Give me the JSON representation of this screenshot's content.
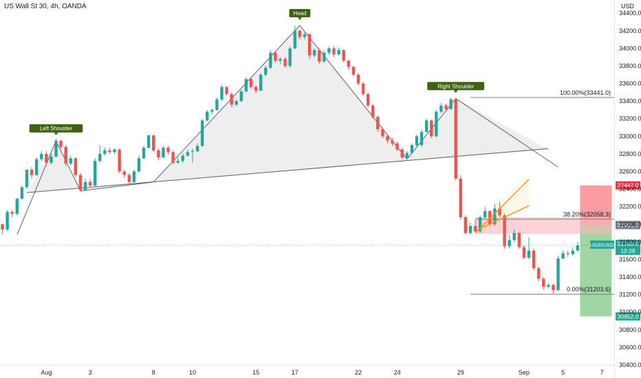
{
  "header": {
    "title": "US Wall St 30, 4h, OANDA",
    "currency": "USD"
  },
  "chart_data": {
    "type": "candlestick",
    "title": "US Wall St 30, 4h, OANDA",
    "ylim": [
      30400,
      34550
    ],
    "y_ticks": [
      30400,
      30600,
      30800,
      31000,
      31200,
      31400,
      31600,
      31800,
      32000,
      32200,
      32400,
      32600,
      32800,
      33000,
      33200,
      33400,
      33600,
      33800,
      34000,
      34200,
      34400
    ],
    "x_ticks": [
      {
        "i": 9,
        "label": "Aug"
      },
      {
        "i": 18,
        "label": "3"
      },
      {
        "i": 31,
        "label": "8"
      },
      {
        "i": 39,
        "label": "10"
      },
      {
        "i": 52,
        "label": "15"
      },
      {
        "i": 60,
        "label": "17"
      },
      {
        "i": 73,
        "label": "22"
      },
      {
        "i": 81,
        "label": "24"
      },
      {
        "i": 94,
        "label": "29"
      },
      {
        "i": 107,
        "label": "Sep"
      },
      {
        "i": 115,
        "label": "5"
      },
      {
        "i": 123,
        "label": "7"
      }
    ],
    "bar_count": 126,
    "candles": [
      [
        0,
        32000,
        31940,
        32010,
        31880
      ],
      [
        1,
        31940,
        32140,
        32160,
        31920
      ],
      [
        2,
        32140,
        32120,
        32160,
        32080
      ],
      [
        3,
        32120,
        32290,
        32300,
        32100
      ],
      [
        4,
        32290,
        32420,
        32440,
        32280
      ],
      [
        5,
        32420,
        32620,
        32630,
        32400
      ],
      [
        6,
        32620,
        32560,
        32650,
        32520
      ],
      [
        7,
        32560,
        32740,
        32760,
        32550
      ],
      [
        8,
        32740,
        32800,
        32830,
        32720
      ],
      [
        9,
        32800,
        32700,
        32830,
        32660
      ],
      [
        10,
        32700,
        32770,
        32810,
        32680
      ],
      [
        11,
        32770,
        32950,
        32970,
        32760
      ],
      [
        12,
        32950,
        32880,
        32960,
        32860
      ],
      [
        13,
        32880,
        32690,
        32900,
        32660
      ],
      [
        14,
        32690,
        32750,
        32780,
        32670
      ],
      [
        15,
        32750,
        32560,
        32760,
        32530
      ],
      [
        16,
        32560,
        32390,
        32580,
        32370
      ],
      [
        17,
        32390,
        32480,
        32520,
        32380
      ],
      [
        18,
        32480,
        32440,
        32520,
        32420
      ],
      [
        19,
        32440,
        32720,
        32750,
        32430
      ],
      [
        20,
        32720,
        32800,
        32900,
        32700
      ],
      [
        21,
        32800,
        32840,
        32870,
        32780
      ],
      [
        22,
        32840,
        32820,
        32870,
        32800
      ],
      [
        23,
        32820,
        32850,
        32860,
        32800
      ],
      [
        24,
        32850,
        32600,
        32860,
        32580
      ],
      [
        25,
        32600,
        32560,
        32620,
        32530
      ],
      [
        26,
        32560,
        32480,
        32580,
        32450
      ],
      [
        27,
        32480,
        32600,
        32620,
        32470
      ],
      [
        28,
        32600,
        32750,
        32780,
        32590
      ],
      [
        29,
        32750,
        32870,
        32890,
        32740
      ],
      [
        30,
        32870,
        33010,
        33020,
        32860
      ],
      [
        31,
        33010,
        32840,
        33020,
        32820
      ],
      [
        32,
        32840,
        32760,
        32860,
        32730
      ],
      [
        33,
        32760,
        32870,
        32890,
        32750
      ],
      [
        34,
        32870,
        32820,
        32890,
        32790
      ],
      [
        35,
        32820,
        32700,
        32840,
        32680
      ],
      [
        36,
        32700,
        32720,
        32760,
        32690
      ],
      [
        37,
        32720,
        32780,
        32810,
        32700
      ],
      [
        38,
        32780,
        32820,
        32850,
        32770
      ],
      [
        39,
        32820,
        32830,
        32860,
        32700
      ],
      [
        40,
        32830,
        32890,
        32920,
        32820
      ],
      [
        41,
        32890,
        33180,
        33200,
        32880
      ],
      [
        42,
        33180,
        33280,
        33300,
        33170
      ],
      [
        43,
        33280,
        33300,
        33320,
        33250
      ],
      [
        44,
        33300,
        33420,
        33440,
        33290
      ],
      [
        45,
        33420,
        33560,
        33580,
        33400
      ],
      [
        46,
        33560,
        33480,
        33570,
        33460
      ],
      [
        47,
        33480,
        33360,
        33500,
        33330
      ],
      [
        48,
        33360,
        33400,
        33420,
        33340
      ],
      [
        49,
        33400,
        33510,
        33530,
        33390
      ],
      [
        50,
        33510,
        33650,
        33670,
        33500
      ],
      [
        51,
        33650,
        33560,
        33660,
        33540
      ],
      [
        52,
        33560,
        33520,
        33580,
        33490
      ],
      [
        53,
        33520,
        33700,
        33720,
        33510
      ],
      [
        54,
        33700,
        33780,
        33800,
        33680
      ],
      [
        55,
        33780,
        33950,
        33980,
        33770
      ],
      [
        56,
        33950,
        33860,
        33960,
        33840
      ],
      [
        57,
        33860,
        33880,
        33900,
        33820
      ],
      [
        58,
        33880,
        33800,
        33900,
        33780
      ],
      [
        59,
        33800,
        34000,
        34020,
        33780
      ],
      [
        60,
        34000,
        34200,
        34260,
        33990
      ],
      [
        61,
        34200,
        34130,
        34210,
        34100
      ],
      [
        62,
        34130,
        34160,
        34180,
        34100
      ],
      [
        63,
        34160,
        33920,
        34170,
        33880
      ],
      [
        64,
        33920,
        33980,
        34000,
        33900
      ],
      [
        65,
        33980,
        33850,
        34000,
        33820
      ],
      [
        66,
        33850,
        33950,
        33970,
        33840
      ],
      [
        67,
        33950,
        34000,
        34020,
        33920
      ],
      [
        68,
        34000,
        33930,
        34030,
        33900
      ],
      [
        69,
        33930,
        33980,
        34010,
        33920
      ],
      [
        70,
        33980,
        33860,
        33990,
        33840
      ],
      [
        71,
        33860,
        33790,
        33870,
        33760
      ],
      [
        72,
        33790,
        33700,
        33800,
        33680
      ],
      [
        73,
        33700,
        33600,
        33720,
        33580
      ],
      [
        74,
        33600,
        33480,
        33620,
        33460
      ],
      [
        75,
        33480,
        33350,
        33500,
        33330
      ],
      [
        76,
        33350,
        33220,
        33370,
        33200
      ],
      [
        77,
        33220,
        33080,
        33240,
        33050
      ],
      [
        78,
        33080,
        33000,
        33100,
        32980
      ],
      [
        79,
        33000,
        32950,
        33020,
        32920
      ],
      [
        80,
        32950,
        32920,
        32980,
        32890
      ],
      [
        81,
        32920,
        32850,
        32940,
        32830
      ],
      [
        82,
        32850,
        32760,
        32870,
        32740
      ],
      [
        83,
        32760,
        32810,
        32830,
        32740
      ],
      [
        84,
        32810,
        32900,
        32920,
        32800
      ],
      [
        85,
        32900,
        33000,
        33020,
        32880
      ],
      [
        86,
        32900,
        33050,
        33080,
        32880
      ],
      [
        87,
        33050,
        33180,
        33200,
        33040
      ],
      [
        88,
        33180,
        33000,
        33190,
        32980
      ],
      [
        89,
        33000,
        33280,
        33300,
        32990
      ],
      [
        90,
        33280,
        33350,
        33380,
        33260
      ],
      [
        91,
        33350,
        33310,
        33370,
        33290
      ],
      [
        92,
        33310,
        33420,
        33440,
        33300
      ],
      [
        93,
        33420,
        32520,
        33430,
        32500
      ],
      [
        94,
        32520,
        32080,
        32560,
        32050
      ],
      [
        95,
        32080,
        31900,
        32100,
        31880
      ],
      [
        96,
        31900,
        31980,
        32020,
        31880
      ],
      [
        97,
        31980,
        31920,
        32050,
        31900
      ],
      [
        98,
        31920,
        32080,
        32100,
        31900
      ],
      [
        99,
        32080,
        32150,
        32200,
        32060
      ],
      [
        100,
        32150,
        32000,
        32160,
        31980
      ],
      [
        101,
        32000,
        32180,
        32230,
        31980
      ],
      [
        102,
        32180,
        32100,
        32250,
        32080
      ],
      [
        103,
        32100,
        31750,
        32120,
        31720
      ],
      [
        104,
        31750,
        31820,
        31880,
        31730
      ],
      [
        105,
        31820,
        31900,
        31940,
        31800
      ],
      [
        106,
        31900,
        31740,
        31910,
        31720
      ],
      [
        107,
        31740,
        31620,
        31760,
        31600
      ],
      [
        108,
        31620,
        31700,
        31850,
        31600
      ],
      [
        109,
        31700,
        31500,
        31720,
        31480
      ],
      [
        110,
        31500,
        31380,
        31520,
        31350
      ],
      [
        111,
        31380,
        31290,
        31400,
        31260
      ],
      [
        112,
        31290,
        31310,
        31330,
        31270
      ],
      [
        113,
        31310,
        31250,
        31320,
        31210
      ],
      [
        114,
        31250,
        31610,
        31640,
        31240
      ],
      [
        115,
        31610,
        31670,
        31700,
        31600
      ],
      [
        116,
        31670,
        31660,
        31700,
        31630
      ],
      [
        117,
        31660,
        31700,
        31740,
        31640
      ],
      [
        118,
        31700,
        31760,
        31800,
        31690
      ]
    ],
    "annotations": {
      "shoulder_labels": [
        {
          "text": "Left Shoulder",
          "i": 11,
          "price": 32950
        },
        {
          "text": "Head",
          "i": 61,
          "price": 34260
        },
        {
          "text": "Right Shoulder",
          "i": 93,
          "price": 33430
        }
      ],
      "fib_levels": [
        {
          "label": "100.00%(33441.0)",
          "price": 33441
        },
        {
          "label": "38.20%(32058.3)",
          "price": 32058.3
        },
        {
          "label": "0.00%(31203.6)",
          "price": 31203.6
        }
      ],
      "price_tags": [
        {
          "text": "32442.0",
          "price": 32442,
          "color": "#f23645"
        },
        {
          "text": "31991.0",
          "price": 31991,
          "color": "#787b86"
        },
        {
          "text": "30952.0",
          "price": 30952,
          "color": "#22ab94"
        }
      ],
      "symbol_tag": {
        "symbol": "US30USD",
        "price_text": "31760.5",
        "countdown": "10:28",
        "price": 31760.5,
        "color": "#26a69a"
      }
    },
    "colors": {
      "up": "#26a69a",
      "down": "#ef5350",
      "pattern_line": "#5d606b",
      "pattern_fill": "#e0e0e0",
      "channel": "#ff9800",
      "zone": "#f8b6bb",
      "stop_box": "#f77c80",
      "target_box": "#81c784",
      "grid": "#e0e3eb",
      "text": "#131722"
    }
  }
}
